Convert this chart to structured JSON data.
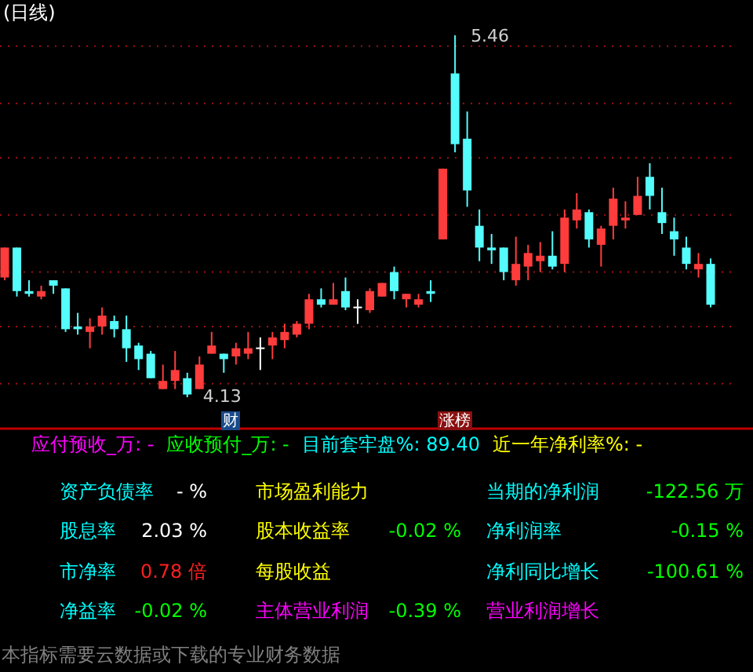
{
  "chart_data": [
    {
      "type": "candlestick",
      "title": "(日线)",
      "ref_lines": [
        {
          "axis": "y",
          "value": 5.42,
          "color": "#a01010",
          "line_style": "dotted"
        },
        {
          "axis": "y",
          "value": 5.21,
          "color": "#a01010",
          "line_style": "dotted"
        },
        {
          "axis": "y",
          "value": 5.01,
          "color": "#a01010",
          "line_style": "dotted"
        },
        {
          "axis": "y",
          "value": 4.8,
          "color": "#a01010",
          "line_style": "dotted"
        },
        {
          "axis": "y",
          "value": 4.59,
          "color": "#a01010",
          "line_style": "dotted"
        },
        {
          "axis": "y",
          "value": 4.39,
          "color": "#a01010",
          "line_style": "dotted"
        },
        {
          "axis": "y",
          "value": 4.18,
          "color": "#a01010",
          "line_style": "dotted"
        }
      ],
      "categories": [
        null,
        null,
        null,
        null,
        null,
        null,
        null,
        null,
        null,
        null,
        null,
        null,
        null,
        null,
        null,
        null,
        null,
        null,
        null,
        null,
        null,
        null,
        null,
        null,
        null,
        null,
        null,
        null,
        null,
        null,
        null,
        null,
        null,
        null,
        null,
        null,
        null,
        null,
        null,
        null,
        null,
        null,
        null,
        null,
        null,
        null,
        null,
        null,
        null,
        null,
        null,
        null,
        null,
        null,
        null,
        null,
        null,
        null,
        null
      ],
      "ohlc": [
        [
          4.57,
          4.68,
          4.56,
          4.68
        ],
        [
          4.68,
          4.68,
          4.5,
          4.52
        ],
        [
          4.52,
          4.56,
          4.5,
          4.51
        ],
        [
          4.5,
          4.54,
          4.49,
          4.52
        ],
        [
          4.56,
          4.56,
          4.51,
          4.54
        ],
        [
          4.53,
          4.53,
          4.37,
          4.38
        ],
        [
          4.39,
          4.44,
          4.36,
          4.38
        ],
        [
          4.37,
          4.42,
          4.31,
          4.39
        ],
        [
          4.39,
          4.46,
          4.36,
          4.43
        ],
        [
          4.41,
          4.43,
          4.35,
          4.38
        ],
        [
          4.38,
          4.43,
          4.26,
          4.31
        ],
        [
          4.32,
          4.33,
          4.23,
          4.27
        ],
        [
          4.29,
          4.3,
          4.2,
          4.2
        ],
        [
          4.16,
          4.25,
          4.16,
          4.19
        ],
        [
          4.19,
          4.3,
          4.16,
          4.23
        ],
        [
          4.2,
          4.22,
          4.13,
          4.14
        ],
        [
          4.16,
          4.28,
          4.16,
          4.25
        ],
        [
          4.29,
          4.37,
          4.29,
          4.32
        ],
        [
          4.29,
          4.29,
          4.22,
          4.27
        ],
        [
          4.28,
          4.33,
          4.25,
          4.31
        ],
        [
          4.29,
          4.37,
          4.27,
          4.31
        ],
        [
          4.31,
          4.35,
          4.23,
          4.31
        ],
        [
          4.32,
          4.37,
          4.27,
          4.35
        ],
        [
          4.34,
          4.4,
          4.31,
          4.37
        ],
        [
          4.36,
          4.41,
          4.35,
          4.4
        ],
        [
          4.4,
          4.51,
          4.38,
          4.49
        ],
        [
          4.49,
          4.53,
          4.46,
          4.47
        ],
        [
          4.47,
          4.55,
          4.47,
          4.49
        ],
        [
          4.52,
          4.57,
          4.45,
          4.46
        ],
        [
          4.46,
          4.49,
          4.4,
          4.46
        ],
        [
          4.45,
          4.53,
          4.44,
          4.52
        ],
        [
          4.5,
          4.55,
          4.5,
          4.55
        ],
        [
          4.59,
          4.61,
          4.49,
          4.52
        ],
        [
          4.49,
          4.51,
          4.46,
          4.51
        ],
        [
          4.47,
          4.51,
          4.46,
          4.49
        ],
        [
          4.52,
          4.56,
          4.48,
          4.51
        ],
        [
          4.71,
          4.97,
          4.71,
          4.97
        ],
        [
          5.32,
          5.46,
          5.03,
          5.06
        ],
        [
          5.08,
          5.18,
          4.83,
          4.89
        ],
        [
          4.76,
          4.82,
          4.63,
          4.68
        ],
        [
          4.68,
          4.73,
          4.62,
          4.67
        ],
        [
          4.68,
          4.68,
          4.56,
          4.59
        ],
        [
          4.56,
          4.72,
          4.54,
          4.62
        ],
        [
          4.61,
          4.69,
          4.56,
          4.66
        ],
        [
          4.63,
          4.7,
          4.59,
          4.65
        ],
        [
          4.65,
          4.74,
          4.6,
          4.61
        ],
        [
          4.62,
          4.82,
          4.59,
          4.79
        ],
        [
          4.78,
          4.88,
          4.75,
          4.82
        ],
        [
          4.81,
          4.82,
          4.68,
          4.71
        ],
        [
          4.69,
          4.76,
          4.61,
          4.75
        ],
        [
          4.76,
          4.9,
          4.71,
          4.86
        ],
        [
          4.78,
          4.85,
          4.75,
          4.79
        ],
        [
          4.8,
          4.94,
          4.8,
          4.87
        ],
        [
          4.94,
          4.99,
          4.82,
          4.87
        ],
        [
          4.81,
          4.9,
          4.73,
          4.77
        ],
        [
          4.74,
          4.79,
          4.65,
          4.71
        ],
        [
          4.68,
          4.72,
          4.6,
          4.62
        ],
        [
          4.6,
          4.66,
          4.57,
          4.62
        ],
        [
          4.62,
          4.64,
          4.46,
          4.47
        ]
      ],
      "annotations": [
        "5.46",
        "4.13",
        "财",
        "涨榜"
      ]
    },
    {
      "type": "other",
      "annotations": [
        "应付预收_万: -",
        "应收预付_万: -",
        "目前套牢盘%: 89.40",
        "近一年净利率%: -",
        "资产负债率",
        "- %",
        "市场盈利能力",
        null,
        "当期的净利润",
        "-122.56 万",
        "股息率",
        "2.03 %",
        "股本收益率",
        "-0.02 %",
        "净利润率",
        "-0.15 %",
        "市净率",
        "0.78 倍",
        "每股收益",
        null,
        "净利同比增长",
        "-100.61 %",
        "净益率",
        "-0.02 %",
        "主体营业利润",
        "-0.39 %",
        "营业利润增长",
        null,
        "本指标需要云数据或下载的专业财务数据"
      ],
      "colors": [
        "#ff00ff",
        "#00ff00",
        "#00ffff",
        "#ffff00",
        "#00ffff",
        "#ffffff",
        "#ffff00",
        null,
        "#00ffff",
        "#00ff00",
        "#00ffff",
        "#ffffff",
        "#ffff00",
        "#00ff00",
        "#00ffff",
        "#00ff00",
        "#00ffff",
        "#ff2020",
        "#ffff00",
        null,
        "#00ffff",
        "#00ff00",
        "#00ffff",
        "#00ff00",
        "#ff00ff",
        "#00ff00",
        "#ff00ff",
        null,
        "#808080"
      ]
    }
  ]
}
